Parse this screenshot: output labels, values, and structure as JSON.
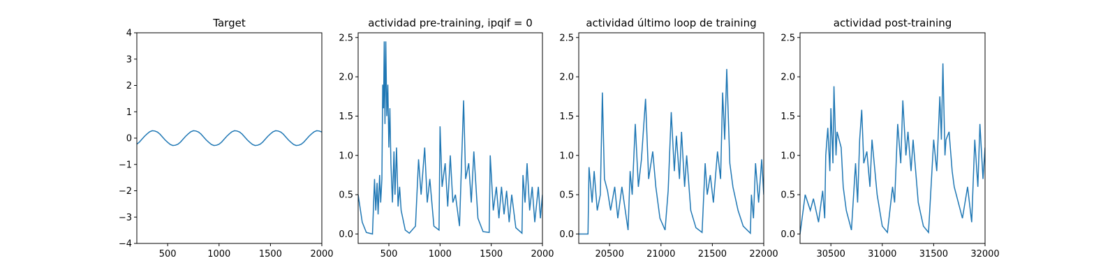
{
  "chart_data": [
    {
      "type": "line",
      "title": "Target",
      "color": "#1f77b4",
      "x": [
        200,
        225,
        250,
        275,
        300,
        325,
        350,
        375,
        400,
        425,
        450,
        475,
        500,
        525,
        550,
        575,
        600,
        625,
        650,
        675,
        700,
        725,
        750,
        775,
        800,
        825,
        850,
        875,
        900,
        925,
        950,
        975,
        1000,
        1025,
        1050,
        1075,
        1100,
        1125,
        1150,
        1175,
        1200,
        1225,
        1250,
        1275,
        1300,
        1325,
        1350,
        1375,
        1400,
        1425,
        1450,
        1475,
        1500,
        1525,
        1550,
        1575,
        1600,
        1625,
        1650,
        1675,
        1700,
        1725,
        1750,
        1775,
        1800,
        1825,
        1850,
        1875,
        1900,
        1925,
        1950,
        1975,
        2000
      ],
      "values": [
        -0.23,
        -0.15,
        -0.04,
        0.07,
        0.16,
        0.24,
        0.28,
        0.27,
        0.23,
        0.15,
        0.04,
        -0.07,
        -0.16,
        -0.24,
        -0.28,
        -0.27,
        -0.23,
        -0.15,
        -0.04,
        0.07,
        0.16,
        0.24,
        0.28,
        0.27,
        0.23,
        0.15,
        0.04,
        -0.07,
        -0.16,
        -0.24,
        -0.28,
        -0.27,
        -0.23,
        -0.15,
        -0.04,
        0.07,
        0.16,
        0.24,
        0.28,
        0.27,
        0.23,
        0.15,
        0.04,
        -0.07,
        -0.16,
        -0.24,
        -0.28,
        -0.27,
        -0.23,
        -0.15,
        -0.04,
        0.07,
        0.16,
        0.24,
        0.28,
        0.27,
        0.23,
        0.15,
        0.04,
        -0.07,
        -0.16,
        -0.24,
        -0.28,
        -0.27,
        -0.23,
        -0.15,
        -0.04,
        0.07,
        0.16,
        0.24,
        0.28,
        0.27,
        0.23
      ],
      "xlim": [
        200,
        2000
      ],
      "xticks": [
        500,
        1000,
        1500,
        2000
      ],
      "ylim": [
        -4,
        4
      ],
      "yticks": [
        {
          "value": -4,
          "label": "−4"
        },
        {
          "value": -3,
          "label": "−3"
        },
        {
          "value": -2,
          "label": "−2"
        },
        {
          "value": -1,
          "label": "−1"
        },
        0,
        1,
        2,
        3,
        4
      ]
    },
    {
      "type": "line",
      "title": "actividad pre-training, ipqif = 0",
      "color": "#1f77b4",
      "x": [
        200,
        240,
        280,
        340,
        360,
        372,
        385,
        395,
        410,
        420,
        432,
        440,
        448,
        455,
        462,
        470,
        480,
        490,
        500,
        510,
        520,
        535,
        550,
        560,
        575,
        590,
        605,
        620,
        660,
        700,
        760,
        790,
        815,
        850,
        875,
        900,
        940,
        990,
        1000,
        1020,
        1050,
        1075,
        1100,
        1125,
        1150,
        1190,
        1230,
        1250,
        1280,
        1305,
        1330,
        1370,
        1420,
        1480,
        1490,
        1520,
        1550,
        1575,
        1600,
        1625,
        1650,
        1675,
        1700,
        1740,
        1800,
        1810,
        1830,
        1850,
        1875,
        1900,
        1925,
        1960,
        1980,
        2000
      ],
      "values": [
        0.5,
        0.15,
        0.02,
        0.0,
        0.7,
        0.3,
        0.65,
        0.25,
        0.75,
        0.4,
        0.7,
        1.9,
        1.6,
        2.45,
        1.4,
        2.45,
        1.5,
        1.9,
        1.1,
        1.6,
        0.9,
        0.4,
        1.05,
        0.5,
        1.1,
        0.35,
        0.6,
        0.3,
        0.05,
        0.01,
        0.1,
        0.95,
        0.5,
        1.1,
        0.4,
        0.7,
        0.1,
        0.05,
        1.37,
        0.6,
        0.9,
        0.35,
        1.0,
        0.4,
        0.5,
        0.1,
        1.7,
        0.7,
        0.9,
        0.4,
        1.05,
        0.2,
        0.03,
        0.02,
        1.0,
        0.3,
        0.6,
        0.2,
        0.6,
        0.25,
        0.55,
        0.15,
        0.5,
        0.08,
        0.01,
        0.75,
        0.4,
        0.9,
        0.3,
        0.6,
        0.15,
        0.6,
        0.2,
        0.5
      ],
      "xlim": [
        200,
        2000
      ],
      "xticks": [
        500,
        1000,
        1500,
        2000
      ],
      "ylim": [
        -0.12,
        2.56
      ],
      "yticks": [
        {
          "value": 0,
          "label": "0.0"
        },
        0.5,
        {
          "value": 1,
          "label": "1.0"
        },
        1.5,
        {
          "value": 2,
          "label": "2.0"
        },
        2.5
      ]
    },
    {
      "type": "line",
      "title": "actividad último loop de training",
      "color": "#1f77b4",
      "x": [
        20200,
        20290,
        20300,
        20330,
        20350,
        20380,
        20410,
        20430,
        20450,
        20480,
        20510,
        20550,
        20580,
        20620,
        20680,
        20700,
        20720,
        20750,
        20780,
        20810,
        20850,
        20880,
        20920,
        20950,
        20990,
        21040,
        21070,
        21100,
        21130,
        21150,
        21180,
        21200,
        21230,
        21250,
        21290,
        21340,
        21400,
        21430,
        21450,
        21480,
        21510,
        21550,
        21580,
        21600,
        21620,
        21640,
        21670,
        21700,
        21750,
        21800,
        21870,
        21880,
        21900,
        21920,
        21950,
        21980,
        22000
      ],
      "values": [
        0.0,
        0.0,
        0.85,
        0.4,
        0.8,
        0.3,
        0.5,
        1.8,
        0.7,
        0.55,
        0.3,
        0.6,
        0.2,
        0.6,
        0.05,
        0.8,
        0.5,
        1.4,
        0.6,
        0.95,
        1.72,
        0.7,
        1.05,
        0.6,
        0.2,
        0.05,
        0.55,
        1.55,
        0.8,
        1.25,
        0.7,
        1.3,
        0.6,
        1.0,
        0.3,
        0.08,
        0.02,
        0.9,
        0.5,
        0.75,
        0.4,
        1.05,
        0.7,
        1.8,
        1.2,
        2.1,
        0.9,
        0.6,
        0.3,
        0.1,
        0.01,
        0.5,
        0.2,
        0.9,
        0.4,
        0.95,
        0.5
      ],
      "xlim": [
        20200,
        22000
      ],
      "xticks": [
        20500,
        21000,
        21500,
        22000
      ],
      "ylim": [
        -0.12,
        2.56
      ],
      "yticks": [
        {
          "value": 0,
          "label": "0.0"
        },
        0.5,
        {
          "value": 1,
          "label": "1.0"
        },
        1.5,
        {
          "value": 2,
          "label": "2.0"
        },
        2.5
      ]
    },
    {
      "type": "line",
      "title": "actividad post-training",
      "color": "#1f77b4",
      "x": [
        30200,
        30250,
        30300,
        30330,
        30380,
        30420,
        30440,
        30450,
        30470,
        30490,
        30500,
        30520,
        30530,
        30550,
        30560,
        30600,
        30620,
        30650,
        30700,
        30740,
        30760,
        30780,
        30800,
        30820,
        30850,
        30880,
        30900,
        30950,
        31000,
        31050,
        31100,
        31120,
        31150,
        31180,
        31200,
        31230,
        31250,
        31280,
        31300,
        31350,
        31400,
        31450,
        31500,
        31530,
        31560,
        31575,
        31590,
        31610,
        31620,
        31650,
        31680,
        31700,
        31780,
        31830,
        31870,
        31900,
        31930,
        31950,
        31980,
        32000
      ],
      "values": [
        0.0,
        0.5,
        0.3,
        0.45,
        0.15,
        0.55,
        0.2,
        1.0,
        1.35,
        0.8,
        1.6,
        0.9,
        1.88,
        1.0,
        1.3,
        1.1,
        0.6,
        0.3,
        0.05,
        0.9,
        0.4,
        1.2,
        1.58,
        0.9,
        1.05,
        0.6,
        1.2,
        0.5,
        0.1,
        0.02,
        0.6,
        0.4,
        1.4,
        0.9,
        1.7,
        1.0,
        1.3,
        0.8,
        1.2,
        0.4,
        0.1,
        0.02,
        1.2,
        0.8,
        1.75,
        1.2,
        2.17,
        1.0,
        1.2,
        1.3,
        0.8,
        0.6,
        0.2,
        0.6,
        0.15,
        1.2,
        0.6,
        1.4,
        0.7,
        1.1
      ],
      "xlim": [
        30200,
        32000
      ],
      "xticks": [
        30500,
        31000,
        31500,
        32000
      ],
      "ylim": [
        -0.12,
        2.56
      ],
      "yticks": [
        {
          "value": 0,
          "label": "0.0"
        },
        0.5,
        {
          "value": 1,
          "label": "1.0"
        },
        1.5,
        {
          "value": 2,
          "label": "2.0"
        },
        2.5
      ]
    }
  ]
}
